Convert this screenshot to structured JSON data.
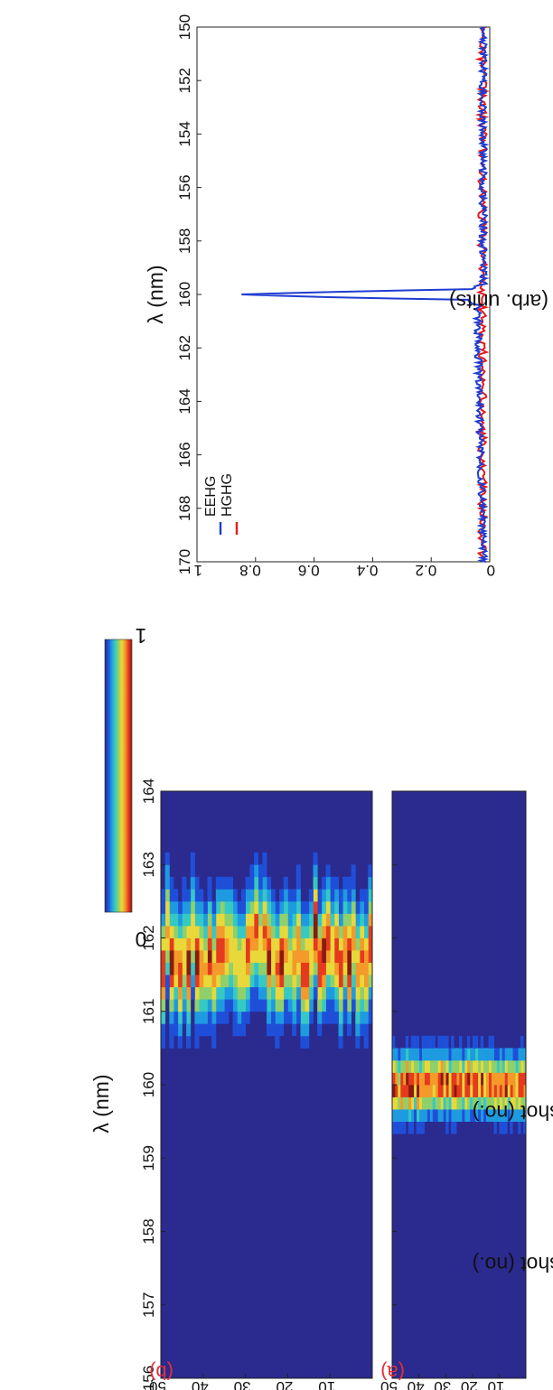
{
  "chart_data": [
    {
      "id": "panel-a",
      "type": "heatmap",
      "panel_label": "(a)",
      "xlabel": "λ (nm)",
      "ylabel": "FEL shot (no.)",
      "x_ticks": [
        "156",
        "157",
        "158",
        "159",
        "160",
        "161",
        "162",
        "163",
        "164"
      ],
      "y_ticks": [
        "10",
        "20",
        "30",
        "40",
        "50"
      ],
      "xlim": [
        156,
        164
      ],
      "ylim": [
        0,
        50
      ],
      "peak_center_nm": 160.0,
      "peak_width_nm": 0.25,
      "peak_jitter_nm": 0.05,
      "value_range": [
        0,
        1
      ]
    },
    {
      "id": "panel-b",
      "type": "heatmap",
      "panel_label": "(b)",
      "xlabel": "λ (nm)",
      "ylabel": "FEL shot (no.)",
      "x_ticks": [
        "156",
        "157",
        "158",
        "159",
        "160",
        "161",
        "162",
        "163",
        "164"
      ],
      "y_ticks": [
        "10",
        "20",
        "30",
        "40",
        "50"
      ],
      "xlim": [
        156,
        164
      ],
      "ylim": [
        0,
        50
      ],
      "peak_center_nm": 161.8,
      "peak_width_nm": 0.45,
      "peak_jitter_nm": 0.35,
      "value_range": [
        0,
        1
      ]
    },
    {
      "id": "colorbar",
      "type": "colorbar",
      "max_label": "1",
      "min_label": "0",
      "colors": [
        "#2b2a8f",
        "#1f4fd8",
        "#1e9be0",
        "#35c9c4",
        "#8fd06a",
        "#e8d83a",
        "#f39a2a",
        "#e63a1e",
        "#8a1a10"
      ]
    },
    {
      "id": "spectrum",
      "type": "line",
      "xlabel": "λ (nm)",
      "ylabel": "Intensity (arb. units)",
      "xlim": [
        150,
        170
      ],
      "ylim": [
        0,
        1
      ],
      "x_ticks": [
        "150",
        "152",
        "154",
        "156",
        "158",
        "160",
        "162",
        "164",
        "166",
        "168",
        "170"
      ],
      "y_ticks": [
        "0",
        "0.2",
        "0.4",
        "0.6",
        "0.8",
        "1"
      ],
      "series": [
        {
          "name": "EEHG",
          "color": "#1f3bd1",
          "x": [
            150,
            159.6,
            159.8,
            159.9,
            160.0,
            160.1,
            160.2,
            160.4,
            170
          ],
          "y": [
            0.01,
            0.01,
            0.05,
            0.5,
            0.84,
            0.55,
            0.06,
            0.03,
            0.01
          ]
        },
        {
          "name": "HGHG",
          "color": "#e41a1c",
          "x": [
            150,
            170
          ],
          "y": [
            0.01,
            0.01
          ]
        }
      ]
    }
  ]
}
